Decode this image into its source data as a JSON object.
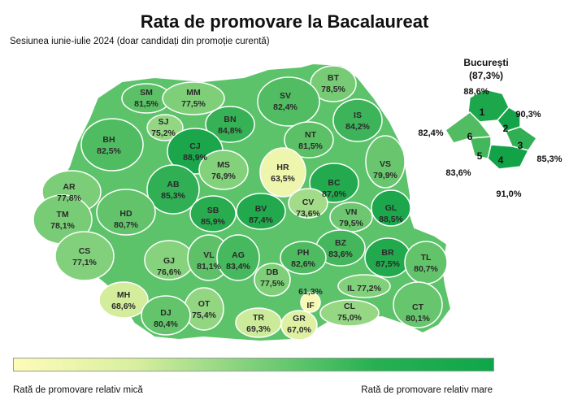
{
  "title": "Rata de promovare la Bacalaureat",
  "subtitle": "Sesiunea iunie-iulie 2024 (doar candidați din promoție curentă)",
  "legend": {
    "low_label": "Rată de promovare relativ mică",
    "high_label": "Rată de promovare relativ mare",
    "low_color": "#fefcb8",
    "high_color": "#0ea64a"
  },
  "counties": [
    {
      "code": "SM",
      "value": "81,5%",
      "rate": 81.5
    },
    {
      "code": "MM",
      "value": "77,5%",
      "rate": 77.5
    },
    {
      "code": "BT",
      "value": "78,5%",
      "rate": 78.5
    },
    {
      "code": "SV",
      "value": "82,4%",
      "rate": 82.4
    },
    {
      "code": "SJ",
      "value": "75,2%",
      "rate": 75.2
    },
    {
      "code": "BN",
      "value": "84,8%",
      "rate": 84.8
    },
    {
      "code": "IS",
      "value": "84,2%",
      "rate": 84.2
    },
    {
      "code": "BH",
      "value": "82,5%",
      "rate": 82.5
    },
    {
      "code": "CJ",
      "value": "88,9%",
      "rate": 88.9
    },
    {
      "code": "NT",
      "value": "81,5%",
      "rate": 81.5
    },
    {
      "code": "HR",
      "value": "63,5%",
      "rate": 63.5
    },
    {
      "code": "MS",
      "value": "76,9%",
      "rate": 76.9
    },
    {
      "code": "VS",
      "value": "79,9%",
      "rate": 79.9
    },
    {
      "code": "BC",
      "value": "87,0%",
      "rate": 87.0
    },
    {
      "code": "AR",
      "value": "77,8%",
      "rate": 77.8
    },
    {
      "code": "AB",
      "value": "85,3%",
      "rate": 85.3
    },
    {
      "code": "CV",
      "value": "73,6%",
      "rate": 73.6
    },
    {
      "code": "GL",
      "value": "88,5%",
      "rate": 88.5
    },
    {
      "code": "TM",
      "value": "78,1%",
      "rate": 78.1
    },
    {
      "code": "HD",
      "value": "80,7%",
      "rate": 80.7
    },
    {
      "code": "SB",
      "value": "85,9%",
      "rate": 85.9
    },
    {
      "code": "BV",
      "value": "87,4%",
      "rate": 87.4
    },
    {
      "code": "VN",
      "value": "79,5%",
      "rate": 79.5
    },
    {
      "code": "BZ",
      "value": "83,6%",
      "rate": 83.6
    },
    {
      "code": "BR",
      "value": "87,5%",
      "rate": 87.5
    },
    {
      "code": "TL",
      "value": "80,7%",
      "rate": 80.7
    },
    {
      "code": "CS",
      "value": "77,1%",
      "rate": 77.1
    },
    {
      "code": "GJ",
      "value": "76,6%",
      "rate": 76.6
    },
    {
      "code": "VL",
      "value": "81,1%",
      "rate": 81.1
    },
    {
      "code": "AG",
      "value": "83,4%",
      "rate": 83.4
    },
    {
      "code": "PH",
      "value": "82,6%",
      "rate": 82.6
    },
    {
      "code": "DB",
      "value": "77,5%",
      "rate": 77.5
    },
    {
      "code": "MH",
      "value": "68,6%",
      "rate": 68.6
    },
    {
      "code": "IF",
      "value": "61,3%",
      "rate": 61.3
    },
    {
      "code": "IL",
      "value": "77,2%",
      "rate": 77.2
    },
    {
      "code": "OT",
      "value": "75,4%",
      "rate": 75.4
    },
    {
      "code": "CL",
      "value": "75,0%",
      "rate": 75.0
    },
    {
      "code": "DJ",
      "value": "80,4%",
      "rate": 80.4
    },
    {
      "code": "TR",
      "value": "69,3%",
      "rate": 69.3
    },
    {
      "code": "GR",
      "value": "67,0%",
      "rate": 67.0
    },
    {
      "code": "CT",
      "value": "80,1%",
      "rate": 80.1
    }
  ],
  "bucharest": {
    "name": "București",
    "value": "(87,3%)",
    "sectors": [
      {
        "number": "1",
        "value": "88,6%",
        "rate": 88.6
      },
      {
        "number": "2",
        "value": "90,3%",
        "rate": 90.3
      },
      {
        "number": "3",
        "value": "85,3%",
        "rate": 85.3
      },
      {
        "number": "4",
        "value": "91,0%",
        "rate": 91.0
      },
      {
        "number": "5",
        "value": "83,6%",
        "rate": 83.6
      },
      {
        "number": "6",
        "value": "82,4%",
        "rate": 82.4
      }
    ]
  }
}
